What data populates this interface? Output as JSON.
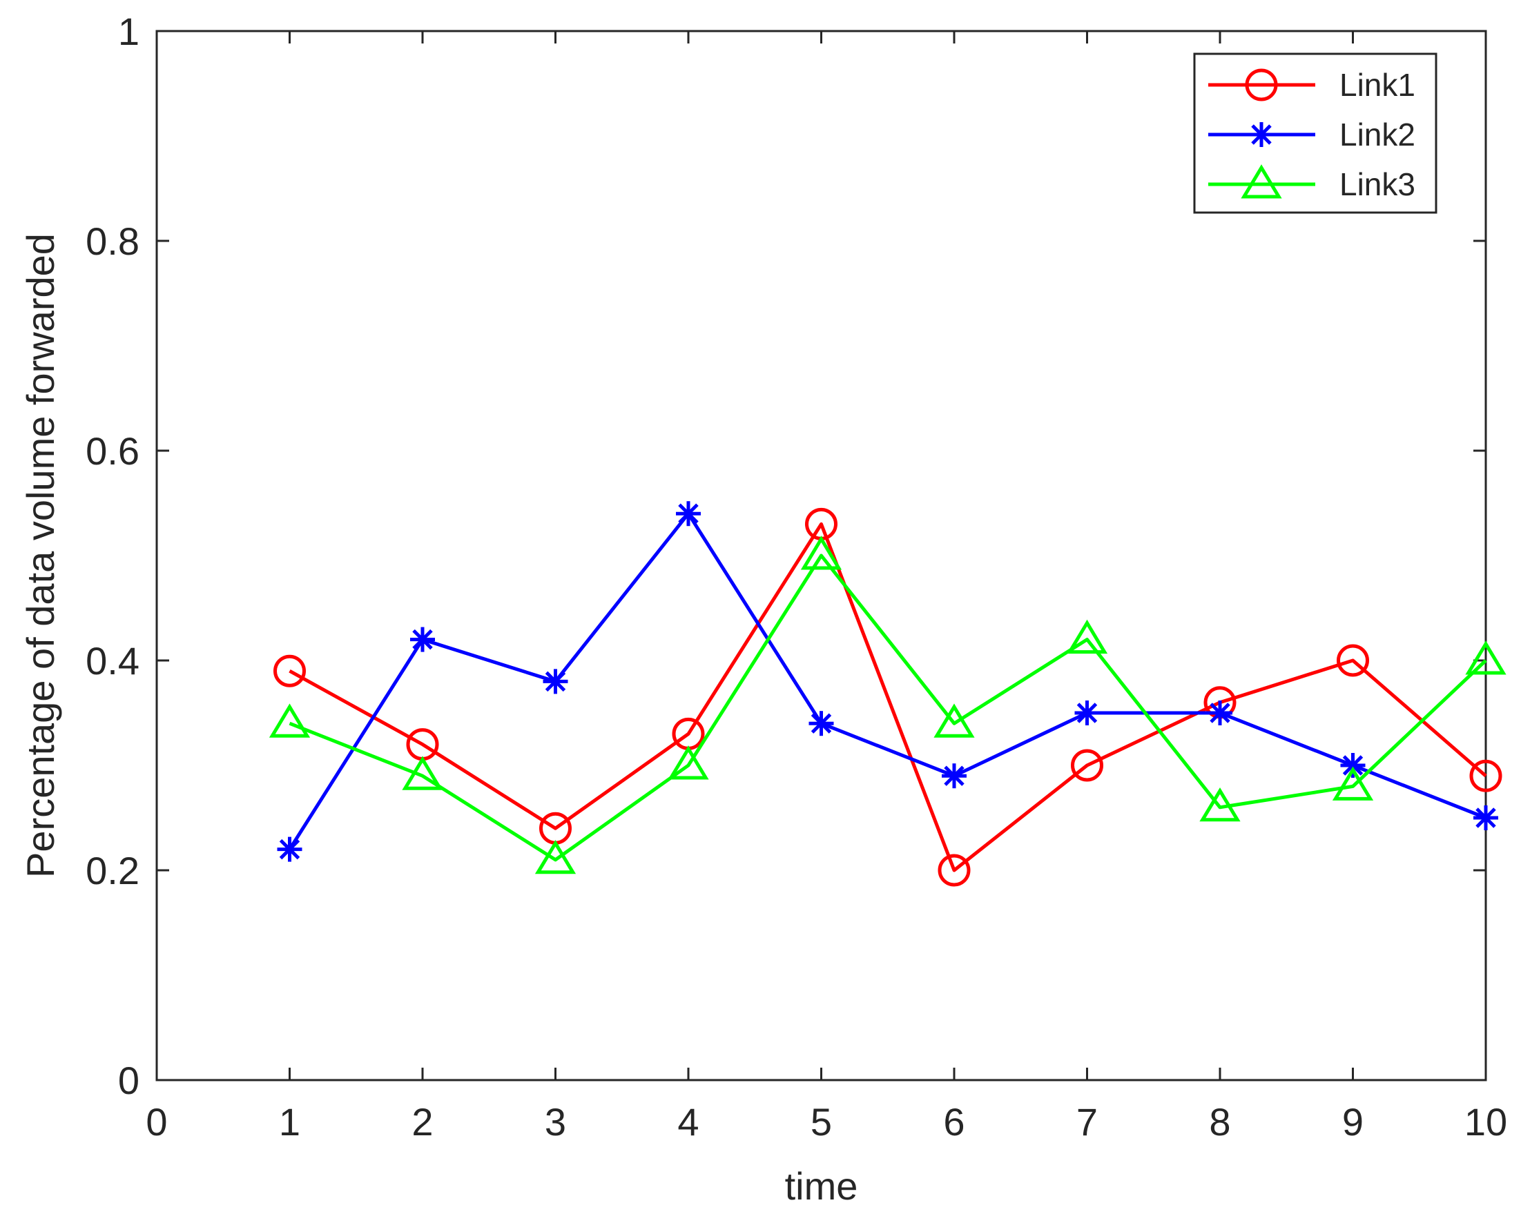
{
  "chart_data": {
    "type": "line",
    "title": "",
    "xlabel": "time",
    "ylabel": "Percentage of data volume forwarded",
    "xlim": [
      0,
      10
    ],
    "ylim": [
      0,
      1
    ],
    "x_ticks": [
      "0",
      "1",
      "2",
      "3",
      "4",
      "5",
      "6",
      "7",
      "8",
      "9",
      "10"
    ],
    "y_ticks": [
      "0",
      "0.2",
      "0.4",
      "0.6",
      "0.8",
      "1"
    ],
    "x": [
      1,
      2,
      3,
      4,
      5,
      6,
      7,
      8,
      9,
      10
    ],
    "grid": false,
    "legend_position": "top-right",
    "series": [
      {
        "name": "Link1",
        "color": "#ff0000",
        "marker": "circle",
        "values": [
          0.39,
          0.32,
          0.24,
          0.33,
          0.53,
          0.2,
          0.3,
          0.36,
          0.4,
          0.29
        ]
      },
      {
        "name": "Link2",
        "color": "#0000ff",
        "marker": "asterisk",
        "values": [
          0.22,
          0.42,
          0.38,
          0.54,
          0.34,
          0.29,
          0.35,
          0.35,
          0.3,
          0.25
        ]
      },
      {
        "name": "Link3",
        "color": "#00ff00",
        "marker": "triangle",
        "values": [
          0.34,
          0.29,
          0.21,
          0.3,
          0.5,
          0.34,
          0.42,
          0.26,
          0.28,
          0.4
        ]
      }
    ]
  }
}
